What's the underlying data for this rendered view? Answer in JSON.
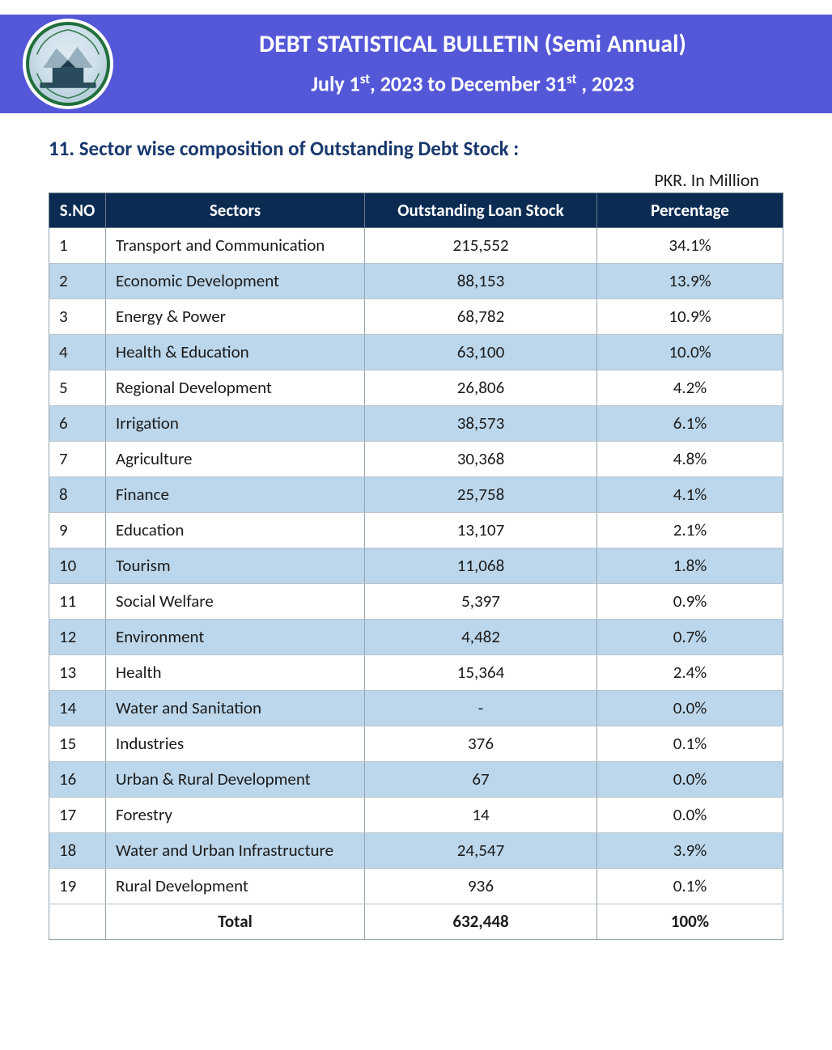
{
  "header": {
    "title_pre": "DEBT STATISTICAL BULLETIN (Semi Annual)",
    "subtitle_pre": "July 1",
    "subtitle_sup1": "st",
    "subtitle_mid": ", 2023 to December 31",
    "subtitle_sup2": "st",
    "subtitle_post": " , 2023"
  },
  "section": {
    "number": "11.",
    "title": "Sector wise composition of Outstanding Debt Stock :",
    "unit_label": "PKR. In Million"
  },
  "table": {
    "columns": {
      "sno": "S.NO",
      "sector": "Sectors",
      "loan": "Outstanding Loan Stock",
      "pct": "Percentage"
    },
    "rows": [
      {
        "sno": "1",
        "sector": "Transport and Communication",
        "loan": "215,552",
        "pct": "34.1%"
      },
      {
        "sno": "2",
        "sector": "Economic Development",
        "loan": "88,153",
        "pct": "13.9%"
      },
      {
        "sno": "3",
        "sector": "Energy & Power",
        "loan": "68,782",
        "pct": "10.9%"
      },
      {
        "sno": "4",
        "sector": "Health & Education",
        "loan": "63,100",
        "pct": "10.0%"
      },
      {
        "sno": "5",
        "sector": "Regional Development",
        "loan": "26,806",
        "pct": "4.2%"
      },
      {
        "sno": "6",
        "sector": "Irrigation",
        "loan": "38,573",
        "pct": "6.1%"
      },
      {
        "sno": "7",
        "sector": "Agriculture",
        "loan": "30,368",
        "pct": "4.8%"
      },
      {
        "sno": "8",
        "sector": "Finance",
        "loan": "25,758",
        "pct": "4.1%"
      },
      {
        "sno": "9",
        "sector": "Education",
        "loan": "13,107",
        "pct": "2.1%"
      },
      {
        "sno": "10",
        "sector": "Tourism",
        "loan": "11,068",
        "pct": "1.8%"
      },
      {
        "sno": "11",
        "sector": "Social Welfare",
        "loan": "5,397",
        "pct": "0.9%"
      },
      {
        "sno": "12",
        "sector": "Environment",
        "loan": "4,482",
        "pct": "0.7%"
      },
      {
        "sno": "13",
        "sector": "Health",
        "loan": "15,364",
        "pct": "2.4%"
      },
      {
        "sno": "14",
        "sector": "Water and Sanitation",
        "loan": "-",
        "pct": "0.0%"
      },
      {
        "sno": "15",
        "sector": "Industries",
        "loan": "376",
        "pct": "0.1%"
      },
      {
        "sno": "16",
        "sector": "Urban & Rural Development",
        "loan": "67",
        "pct": "0.0%"
      },
      {
        "sno": "17",
        "sector": "Forestry",
        "loan": "14",
        "pct": "0.0%"
      },
      {
        "sno": "18",
        "sector": "Water and Urban Infrastructure",
        "loan": "24,547",
        "pct": "3.9%"
      },
      {
        "sno": "19",
        "sector": "Rural Development",
        "loan": "936",
        "pct": "0.1%"
      }
    ],
    "total": {
      "label": "Total",
      "loan": "632,448",
      "pct": "100%"
    }
  },
  "colors": {
    "banner_bg": "#5458d8",
    "table_header_bg": "#0b2b53",
    "row_even_bg": "#bcd7ec",
    "row_odd_bg": "#ffffff",
    "section_title": "#18386e"
  }
}
